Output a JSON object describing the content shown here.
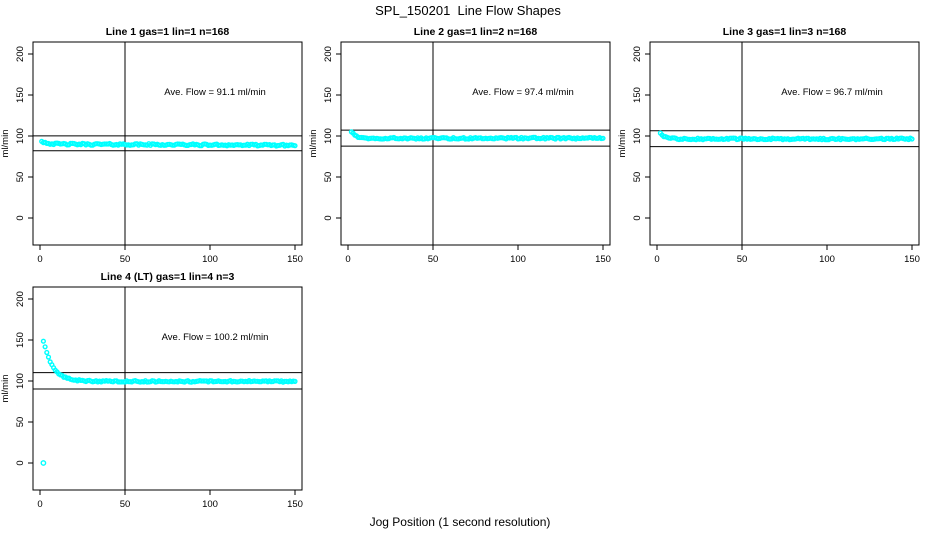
{
  "page": {
    "title": "SPL_150201  Line Flow Shapes",
    "xlabel": "Jog Position (1 second resolution)"
  },
  "colors": {
    "points": "#00ffff",
    "axis": "#000000",
    "background": "#ffffff"
  },
  "chart_data": [
    {
      "type": "scatter",
      "title": "Line 1 gas=1 lin=1 n=168",
      "annotation": "Ave. Flow =  91.1  ml/min",
      "ave_flow": 91.1,
      "n": 168,
      "ylabel": "ml/min",
      "xticks": [
        0,
        50,
        100,
        150
      ],
      "yticks": [
        0,
        50,
        100,
        150,
        200
      ],
      "xlim": [
        -4,
        154
      ],
      "ylim": [
        -33,
        215
      ],
      "grid": false,
      "vline_x": 50,
      "hlines": [
        100.2,
        82.0
      ],
      "marker": "open-circle",
      "series": {
        "x_start": 1,
        "x_end": 150,
        "start_flow": 94,
        "settle_flow": 90.2,
        "decay_tau": 3.0,
        "drift": -1.5,
        "jitter": 1.1,
        "outliers": []
      }
    },
    {
      "type": "scatter",
      "title": "Line 2 gas=1 lin=2 n=168",
      "annotation": "Ave. Flow =  97.4  ml/min",
      "ave_flow": 97.4,
      "n": 168,
      "ylabel": "ml/min",
      "xticks": [
        0,
        50,
        100,
        150
      ],
      "yticks": [
        0,
        50,
        100,
        150,
        200
      ],
      "xlim": [
        -4,
        154
      ],
      "ylim": [
        -33,
        215
      ],
      "grid": false,
      "vline_x": 50,
      "hlines": [
        107.1,
        87.7
      ],
      "marker": "open-circle",
      "series": {
        "x_start": 2,
        "x_end": 150,
        "start_flow": 105.5,
        "settle_flow": 97.3,
        "decay_tau": 2.8,
        "drift": 0,
        "jitter": 1.0,
        "outliers": []
      }
    },
    {
      "type": "scatter",
      "title": "Line 3 gas=1 lin=3 n=168",
      "annotation": "Ave. Flow =  96.7  ml/min",
      "ave_flow": 96.7,
      "n": 168,
      "ylabel": "ml/min",
      "xticks": [
        0,
        50,
        100,
        150
      ],
      "yticks": [
        0,
        50,
        100,
        150,
        200
      ],
      "xlim": [
        -4,
        154
      ],
      "ylim": [
        -33,
        215
      ],
      "grid": false,
      "vline_x": 50,
      "hlines": [
        106.4,
        87.0
      ],
      "marker": "open-circle",
      "series": {
        "x_start": 2,
        "x_end": 150,
        "start_flow": 104,
        "settle_flow": 96.5,
        "decay_tau": 2.5,
        "drift": 0,
        "jitter": 1.0,
        "outliers": []
      }
    },
    {
      "type": "scatter",
      "title": "Line 4 (LT) gas=1 lin=4 n=3",
      "annotation": "Ave. Flow =  100.2  ml/min",
      "ave_flow": 100.2,
      "n": 3,
      "ylabel": "ml/min",
      "xticks": [
        0,
        50,
        100,
        150
      ],
      "yticks": [
        0,
        50,
        100,
        150,
        200
      ],
      "xlim": [
        -4,
        154
      ],
      "ylim": [
        -33,
        215
      ],
      "grid": false,
      "vline_x": 50,
      "hlines": [
        110.2,
        90.2
      ],
      "marker": "open-circle",
      "series": {
        "x_start": 2,
        "x_end": 150,
        "start_flow": 149,
        "settle_flow": 99.6,
        "decay_tau": 5.5,
        "drift": 0,
        "jitter": 0.9,
        "outliers": [
          [
            2,
            0
          ]
        ]
      }
    }
  ]
}
